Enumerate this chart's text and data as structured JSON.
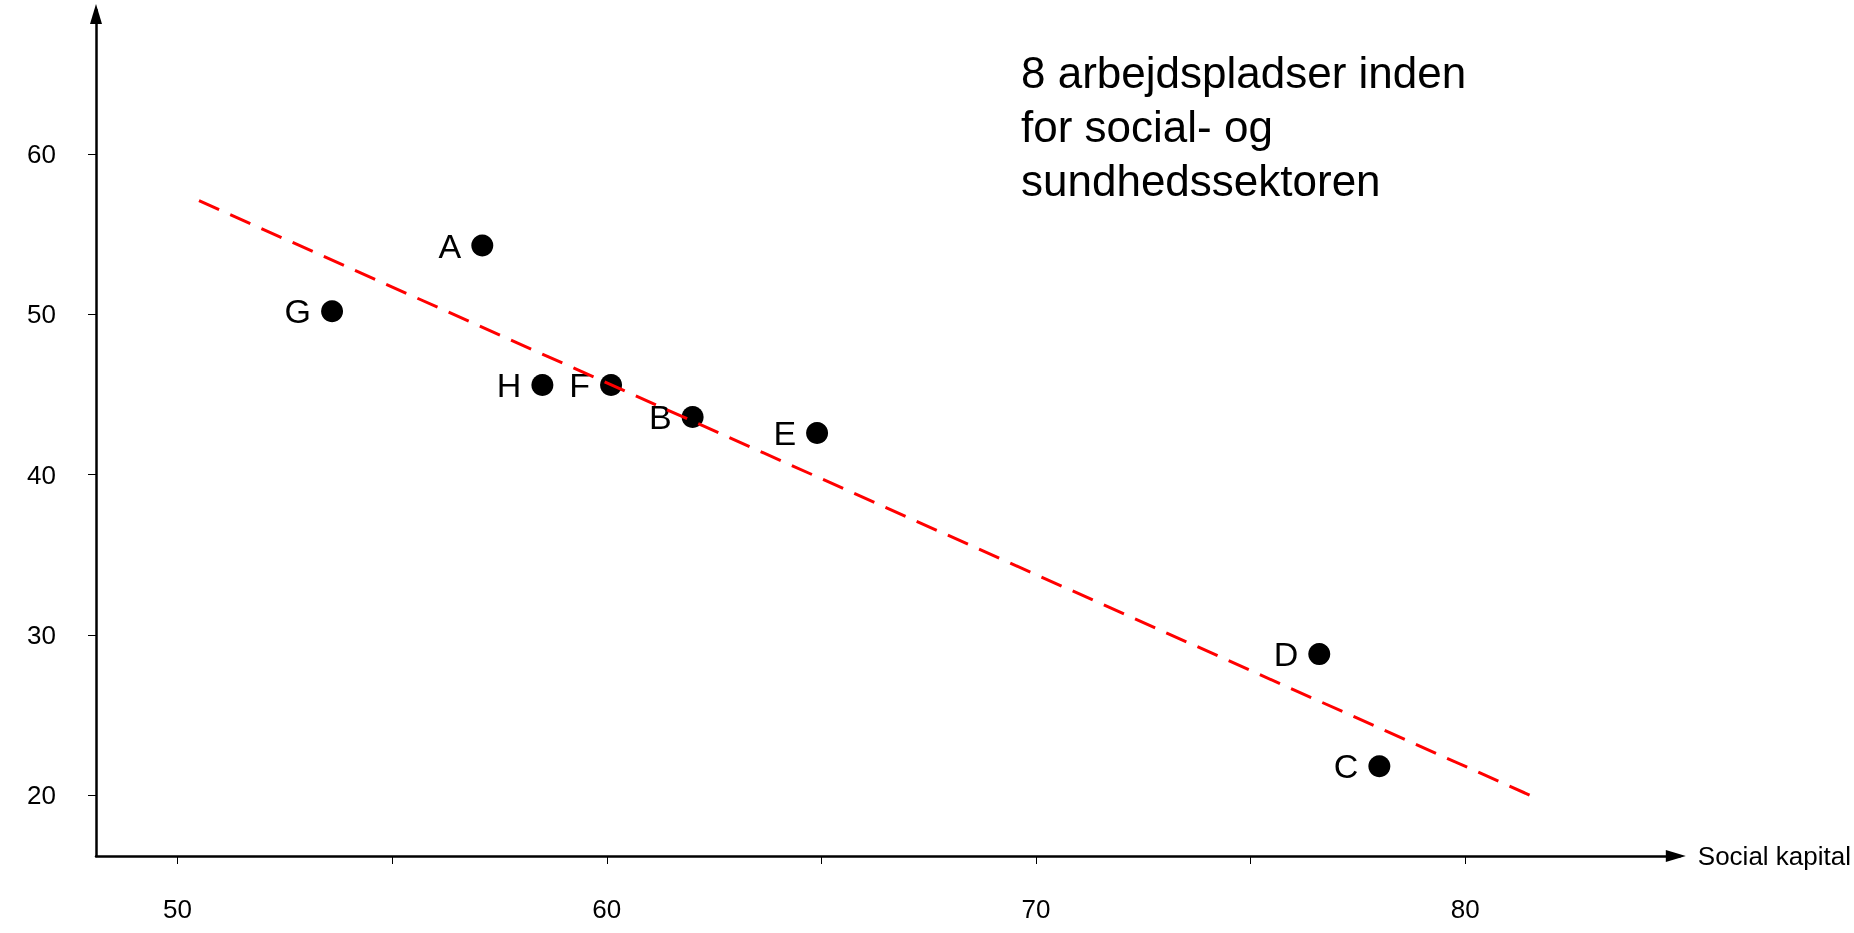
{
  "chart_data": {
    "type": "scatter",
    "title": "8 arbejdspladser inden for social- og sundhedssektoren",
    "xlabel": "Social kapital",
    "x": [
      57.1,
      53.6,
      58.5,
      60.1,
      62.0,
      64.9,
      76.6,
      78.0
    ],
    "series": [
      {
        "color": "#000000",
        "marker": "circle",
        "values": [
          54.3,
          50.2,
          45.6,
          45.6,
          43.6,
          42.6,
          28.8,
          21.8
        ],
        "value_labels": [
          "A",
          "G",
          "H",
          "F",
          "B",
          "E",
          "D",
          "C"
        ]
      },
      {
        "type": "line",
        "color": "#ff0000",
        "line_style": "dashed",
        "marker": "none",
        "x": [
          50.5,
          81.5
        ],
        "values": [
          57.1,
          20.0
        ]
      }
    ],
    "xlim": [
      48.1,
      85
    ],
    "xticks": [
      50,
      {
        "value": 55,
        "label": null
      },
      60,
      {
        "value": 65,
        "label": null
      },
      70,
      {
        "value": 75,
        "label": null
      },
      80
    ],
    "ylim": [
      16.2,
      69
    ],
    "yticks": [
      20,
      30,
      40,
      50,
      60
    ],
    "grid": false
  }
}
